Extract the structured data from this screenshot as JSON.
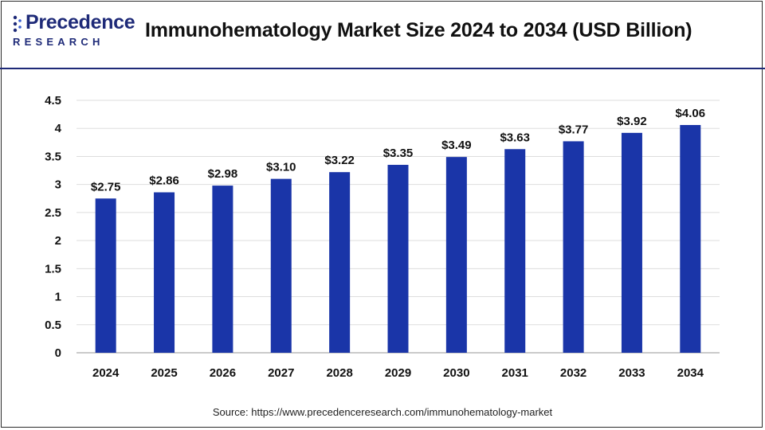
{
  "header": {
    "logo_text": "Precedence",
    "logo_subtext": "RESEARCH",
    "title": "Immunohematology Market Size 2024 to 2034 (USD Billion)"
  },
  "footer": {
    "source": "Source: https://www.precedenceresearch.com/immunohematology-market"
  },
  "colors": {
    "bar": "#1a35a8",
    "brand": "#1e2a78",
    "grid": "#dddddd",
    "axis": "#aaaaaa"
  },
  "chart_data": {
    "type": "bar",
    "title": "Immunohematology Market Size 2024 to 2034 (USD Billion)",
    "xlabel": "",
    "ylabel": "",
    "categories": [
      "2024",
      "2025",
      "2026",
      "2027",
      "2028",
      "2029",
      "2030",
      "2031",
      "2032",
      "2033",
      "2034"
    ],
    "values": [
      2.75,
      2.86,
      2.98,
      3.1,
      3.22,
      3.35,
      3.49,
      3.63,
      3.77,
      3.92,
      4.06
    ],
    "data_labels": [
      "$2.75",
      "$2.86",
      "$2.98",
      "$3.10",
      "$3.22",
      "$3.35",
      "$3.49",
      "$3.63",
      "$3.77",
      "$3.92",
      "$4.06"
    ],
    "y_ticks": [
      0,
      0.5,
      1,
      1.5,
      2,
      2.5,
      3,
      3.5,
      4,
      4.5
    ],
    "y_tick_labels": [
      "0",
      "0.5",
      "1",
      "1.5",
      "2",
      "2.5",
      "3",
      "3.5",
      "4",
      "4.5"
    ],
    "ylim": [
      0,
      4.5
    ],
    "grid": true,
    "legend": "none"
  }
}
